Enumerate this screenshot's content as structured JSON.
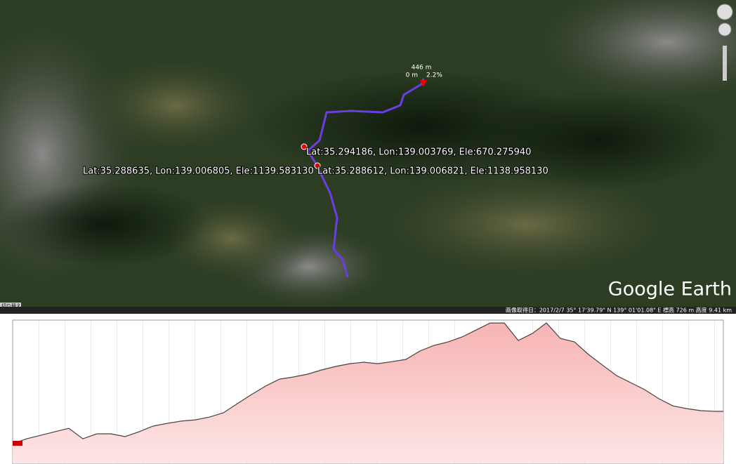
{
  "map": {
    "marker": {
      "elevation": "446 m",
      "distance": "0 m",
      "grade": "2.2%"
    },
    "labels": [
      "Lat:35.294186, Lon:139.003769, Ele:670.275940",
      "Lat:35.288635, Lon:139.006805, Ele:1139.583130",
      "Lat:35.288612, Lon:139.006821, Ele:1138.958130"
    ],
    "logo": "Google Earth",
    "toggle": "切り替え",
    "year": "2011",
    "status": "画像取得日：2017/2/7   35° 17'39.79\" N 139° 01'01.08\" E  標高  726 m   高度  9.41 km"
  },
  "elevation_profile": {
    "ylim": [
      380,
      1150
    ],
    "values": [
      487,
      513,
      532,
      551,
      570,
      513,
      540,
      540,
      525,
      551,
      582,
      597,
      609,
      616,
      631,
      654,
      704,
      753,
      799,
      837,
      849,
      864,
      887,
      906,
      921,
      929,
      921,
      932,
      944,
      990,
      1020,
      1039,
      1066,
      1104,
      1142,
      1142,
      1047,
      1085,
      1142,
      1058,
      1039,
      971,
      913,
      856,
      818,
      780,
      731,
      692,
      677,
      666,
      662
    ]
  }
}
